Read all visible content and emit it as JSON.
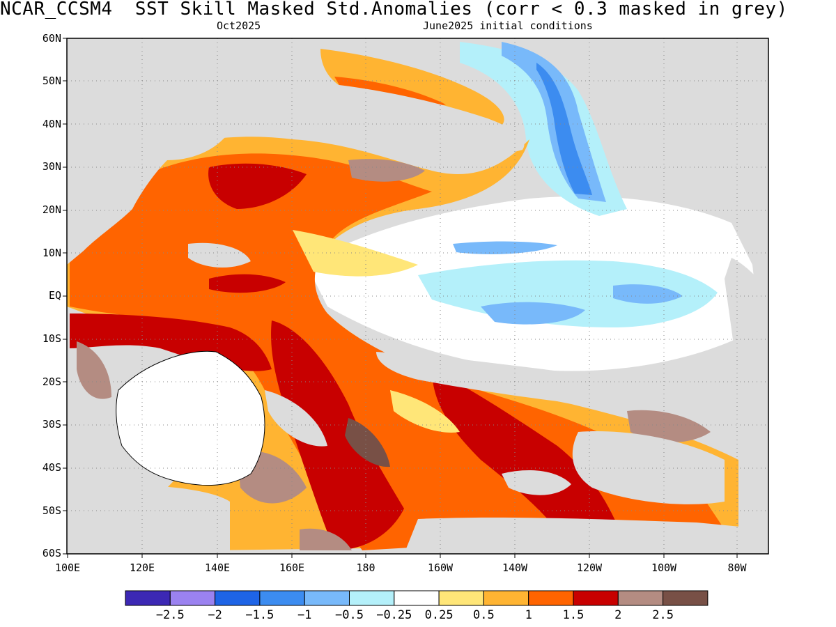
{
  "header": {
    "title": "NCAR_CCSM4  SST Skill Masked Std.Anomalies (corr < 0.3 masked in grey)",
    "forecast_month": "Oct2025",
    "initial_conditions": "June2025 initial conditions"
  },
  "map": {
    "lat_labels": [
      "60N",
      "50N",
      "40N",
      "30N",
      "20N",
      "10N",
      "EQ",
      "10S",
      "20S",
      "30S",
      "40S",
      "50S",
      "60S"
    ],
    "lon_labels": [
      "100E",
      "120E",
      "140E",
      "160E",
      "180",
      "160W",
      "140W",
      "120W",
      "100W",
      "80W"
    ],
    "lon_range": [
      100,
      290
    ],
    "lat_range": [
      -60,
      60
    ],
    "mask_color": "#dcdcdc",
    "land_color": "#ffffff"
  },
  "colorbar": {
    "colors": [
      "#3c28b4",
      "#9b82f0",
      "#1e64e6",
      "#3c8cf0",
      "#78b9fa",
      "#b4f0fa",
      "#ffffff",
      "#ffe678",
      "#ffb432",
      "#ff6400",
      "#c80000",
      "#b48c82",
      "#785046"
    ],
    "labels": [
      "−2.5",
      "−2",
      "−1.5",
      "−1",
      "−0.5",
      "−0.25",
      "0.25",
      "0.5",
      "1",
      "1.5",
      "2",
      "2.5"
    ]
  }
}
